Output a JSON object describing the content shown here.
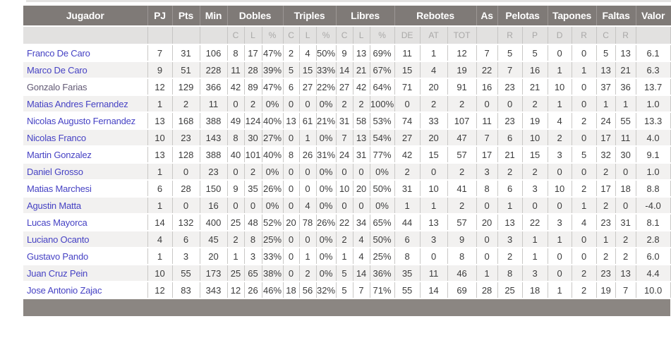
{
  "table": {
    "header": {
      "jugador": "Jugador",
      "pj": "PJ",
      "pts": "Pts",
      "min": "Min",
      "dobles": "Dobles",
      "triples": "Triples",
      "libres": "Libres",
      "rebotes": "Rebotes",
      "as": "As",
      "pelotas": "Pelotas",
      "tapones": "Tapones",
      "faltas": "Faltas",
      "valor": "Valor"
    },
    "sub_labels": [
      "",
      "",
      "",
      "",
      "C",
      "L",
      "%",
      "C",
      "L",
      "%",
      "C",
      "L",
      "%",
      "DE",
      "AT",
      "TOT",
      "",
      "R",
      "P",
      "D",
      "R",
      "C",
      "R",
      ""
    ],
    "rows": [
      {
        "name": "Franco De Caro",
        "visited": false,
        "stats": [
          "7",
          "31",
          "106",
          "8",
          "17",
          "47%",
          "2",
          "4",
          "50%",
          "9",
          "13",
          "69%",
          "11",
          "1",
          "12",
          "7",
          "5",
          "5",
          "0",
          "0",
          "5",
          "13",
          "6.1"
        ]
      },
      {
        "name": "Marco De Caro",
        "visited": false,
        "stats": [
          "9",
          "51",
          "228",
          "11",
          "28",
          "39%",
          "5",
          "15",
          "33%",
          "14",
          "21",
          "67%",
          "15",
          "4",
          "19",
          "22",
          "7",
          "16",
          "1",
          "1",
          "13",
          "21",
          "6.3"
        ]
      },
      {
        "name": "Gonzalo Farias",
        "visited": true,
        "stats": [
          "12",
          "129",
          "366",
          "42",
          "89",
          "47%",
          "6",
          "27",
          "22%",
          "27",
          "42",
          "64%",
          "71",
          "20",
          "91",
          "16",
          "23",
          "21",
          "10",
          "0",
          "37",
          "36",
          "13.7"
        ]
      },
      {
        "name": "Matias Andres Fernandez",
        "visited": false,
        "stats": [
          "1",
          "2",
          "11",
          "0",
          "2",
          "0%",
          "0",
          "0",
          "0%",
          "2",
          "2",
          "100%",
          "0",
          "2",
          "2",
          "0",
          "0",
          "2",
          "1",
          "0",
          "1",
          "1",
          "1.0"
        ]
      },
      {
        "name": "Nicolas Augusto Fernandez",
        "visited": false,
        "stats": [
          "13",
          "168",
          "388",
          "49",
          "124",
          "40%",
          "13",
          "61",
          "21%",
          "31",
          "58",
          "53%",
          "74",
          "33",
          "107",
          "11",
          "23",
          "19",
          "4",
          "2",
          "24",
          "55",
          "13.3"
        ]
      },
      {
        "name": "Nicolas Franco",
        "visited": false,
        "stats": [
          "10",
          "23",
          "143",
          "8",
          "30",
          "27%",
          "0",
          "1",
          "0%",
          "7",
          "13",
          "54%",
          "27",
          "20",
          "47",
          "7",
          "6",
          "10",
          "2",
          "0",
          "17",
          "11",
          "4.0"
        ]
      },
      {
        "name": "Martin Gonzalez",
        "visited": false,
        "stats": [
          "13",
          "128",
          "388",
          "40",
          "101",
          "40%",
          "8",
          "26",
          "31%",
          "24",
          "31",
          "77%",
          "42",
          "15",
          "57",
          "17",
          "21",
          "15",
          "3",
          "5",
          "32",
          "30",
          "9.1"
        ]
      },
      {
        "name": "Daniel Grosso",
        "visited": false,
        "stats": [
          "1",
          "0",
          "23",
          "0",
          "2",
          "0%",
          "0",
          "0",
          "0%",
          "0",
          "0",
          "0%",
          "2",
          "0",
          "2",
          "3",
          "2",
          "2",
          "0",
          "0",
          "2",
          "0",
          "1.0"
        ]
      },
      {
        "name": "Matias Marchesi",
        "visited": false,
        "stats": [
          "6",
          "28",
          "150",
          "9",
          "35",
          "26%",
          "0",
          "0",
          "0%",
          "10",
          "20",
          "50%",
          "31",
          "10",
          "41",
          "8",
          "6",
          "3",
          "10",
          "2",
          "17",
          "18",
          "8.8"
        ]
      },
      {
        "name": "Agustin Matta",
        "visited": false,
        "stats": [
          "1",
          "0",
          "16",
          "0",
          "0",
          "0%",
          "0",
          "4",
          "0%",
          "0",
          "0",
          "0%",
          "1",
          "1",
          "2",
          "0",
          "1",
          "0",
          "0",
          "1",
          "2",
          "0",
          "-4.0"
        ]
      },
      {
        "name": "Lucas Mayorca",
        "visited": false,
        "stats": [
          "14",
          "132",
          "400",
          "25",
          "48",
          "52%",
          "20",
          "78",
          "26%",
          "22",
          "34",
          "65%",
          "44",
          "13",
          "57",
          "20",
          "13",
          "22",
          "3",
          "4",
          "23",
          "31",
          "8.1"
        ]
      },
      {
        "name": "Luciano Ocanto",
        "visited": false,
        "stats": [
          "4",
          "6",
          "45",
          "2",
          "8",
          "25%",
          "0",
          "0",
          "0%",
          "2",
          "4",
          "50%",
          "6",
          "3",
          "9",
          "0",
          "3",
          "1",
          "1",
          "0",
          "1",
          "2",
          "2.8"
        ]
      },
      {
        "name": "Gustavo Pando",
        "visited": false,
        "stats": [
          "1",
          "3",
          "20",
          "1",
          "3",
          "33%",
          "0",
          "1",
          "0%",
          "1",
          "4",
          "25%",
          "8",
          "0",
          "8",
          "0",
          "2",
          "1",
          "0",
          "0",
          "2",
          "2",
          "6.0"
        ]
      },
      {
        "name": "Juan Cruz Pein",
        "visited": false,
        "stats": [
          "10",
          "55",
          "173",
          "25",
          "65",
          "38%",
          "0",
          "2",
          "0%",
          "5",
          "14",
          "36%",
          "35",
          "11",
          "46",
          "1",
          "8",
          "3",
          "0",
          "2",
          "23",
          "13",
          "4.4"
        ]
      },
      {
        "name": "Jose Antonio Zajac",
        "visited": false,
        "stats": [
          "12",
          "83",
          "343",
          "12",
          "26",
          "46%",
          "18",
          "56",
          "32%",
          "5",
          "7",
          "71%",
          "55",
          "14",
          "69",
          "28",
          "25",
          "18",
          "1",
          "2",
          "19",
          "7",
          "10.0"
        ]
      }
    ],
    "colors": {
      "header_bg": "#7f7a77",
      "subheader_bg": "#e2e1e0",
      "link_blue": "#4642c4",
      "link_visited": "#625a74",
      "row_alt_bg": "#f2f1f0",
      "footer_bg": "#8b8682"
    }
  }
}
